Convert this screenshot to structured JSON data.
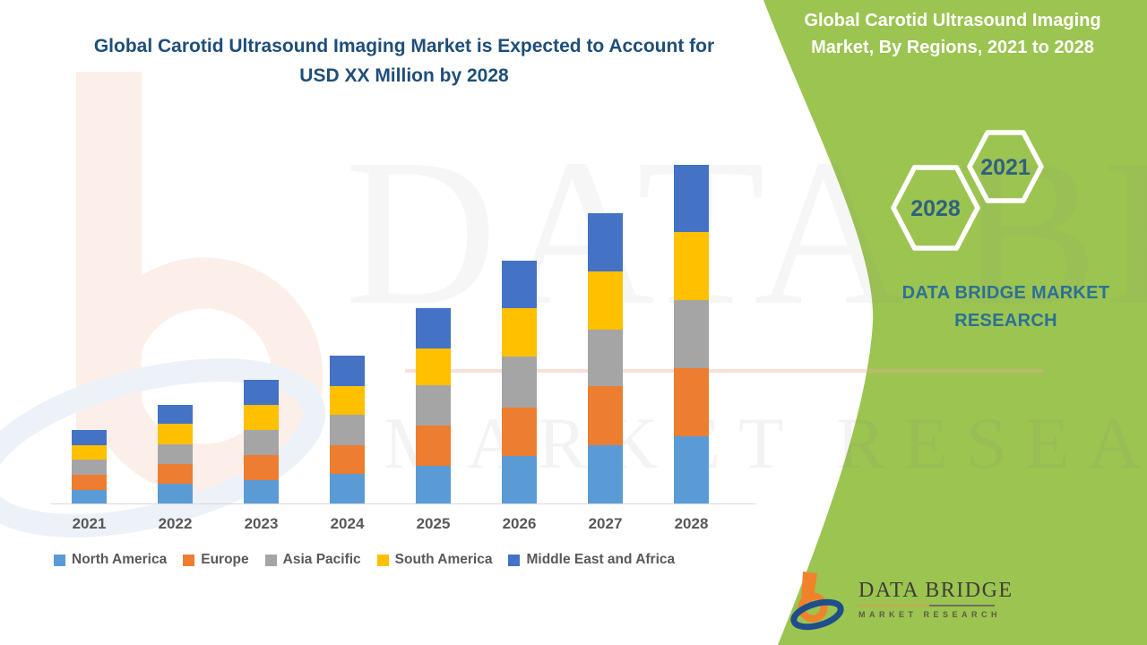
{
  "header": {
    "title_line1": "Global Carotid Ultrasound Imaging Market is Expected to Account for",
    "title_line2": "USD XX Million by 2028"
  },
  "side_panel": {
    "heading_line1": "Global Carotid Ultrasound Imaging",
    "heading_line2": "Market, By Regions, 2021 to 2028",
    "hexagons": {
      "right_year": "2021",
      "left_year": "2028"
    },
    "brand_text": "DATA BRIDGE MARKET RESEARCH"
  },
  "watermark": {
    "big_text": "DATA BRIDGE",
    "sub_text": "MARKET RESEARCH"
  },
  "footer_logo": {
    "brand": "DATA BRIDGE",
    "tagline": "MARKET RESEARCH"
  },
  "colors": {
    "panel_green": "#9CC451",
    "title_blue": "#1F4E79",
    "hexagon_year_text": "#2E617F",
    "brand_teal": "#2C7095",
    "axis_text": "#595959",
    "axis_line": "#D9D9D9"
  },
  "chart_data": {
    "type": "bar",
    "stacked": true,
    "title": "Global Carotid Ultrasound Imaging Market is Expected to Account for USD XX Million by 2028",
    "xlabel": "",
    "ylabel": "",
    "value_note": "Y-axis not labeled in source (values masked as 'USD XX Million'); series values are relative heights read from the chart",
    "legend_position": "bottom",
    "grid": false,
    "categories": [
      "2021",
      "2022",
      "2023",
      "2024",
      "2025",
      "2026",
      "2027",
      "2028"
    ],
    "series": [
      {
        "name": "North America",
        "color": "#5B9BD5",
        "values": [
          15,
          22,
          26,
          33,
          42,
          53,
          65,
          75
        ]
      },
      {
        "name": "Europe",
        "color": "#ED7D31",
        "values": [
          17,
          22,
          28,
          32,
          45,
          54,
          66,
          76
        ]
      },
      {
        "name": "Asia Pacific",
        "color": "#A5A5A5",
        "values": [
          17,
          22,
          28,
          34,
          45,
          57,
          63,
          76
        ]
      },
      {
        "name": "South America",
        "color": "#FFC000",
        "values": [
          16,
          23,
          28,
          32,
          41,
          54,
          65,
          76
        ]
      },
      {
        "name": "Middle East and Africa",
        "color": "#4472C4",
        "values": [
          17,
          21,
          28,
          34,
          45,
          53,
          65,
          75
        ]
      }
    ],
    "totals": [
      82,
      110,
      138,
      165,
      218,
      271,
      324,
      378
    ]
  }
}
